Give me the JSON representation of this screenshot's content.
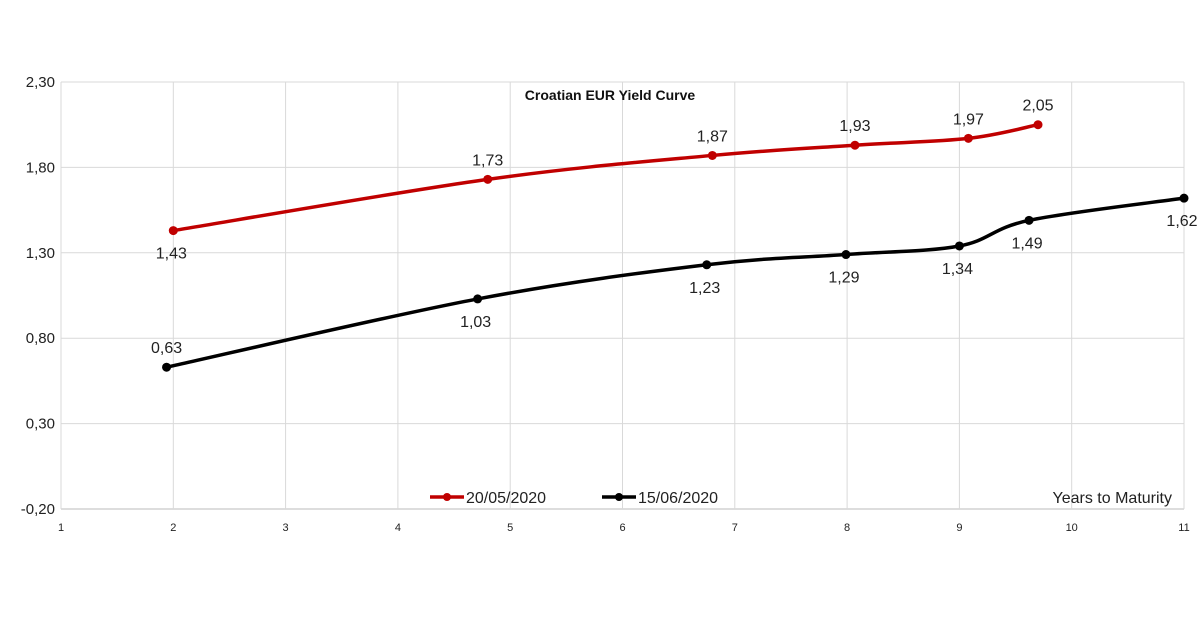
{
  "chart_data": {
    "type": "line",
    "title": "Croatian EUR Yield Curve",
    "xlabel": "Years to Maturity",
    "ylabel": "",
    "xlim": [
      1,
      11
    ],
    "ylim": [
      -0.2,
      2.3
    ],
    "x_ticks": [
      "1",
      "2",
      "3",
      "4",
      "5",
      "6",
      "7",
      "8",
      "9",
      "10",
      "11"
    ],
    "y_ticks": [
      "-0,20",
      "0,30",
      "0,80",
      "1,30",
      "1,80",
      "2,30"
    ],
    "y_tick_values": [
      -0.2,
      0.3,
      0.8,
      1.3,
      1.8,
      2.3
    ],
    "grid": true,
    "legend_position": "bottom-center",
    "series": [
      {
        "name": "20/05/2020",
        "color": "#c00000",
        "x": [
          2.0,
          4.8,
          6.8,
          8.07,
          9.08,
          9.7
        ],
        "y": [
          1.43,
          1.73,
          1.87,
          1.93,
          1.97,
          2.05
        ],
        "labels": [
          "1,43",
          "1,73",
          "1,87",
          "1,93",
          "1,97",
          "2,05"
        ],
        "label_pos": [
          "below",
          "above",
          "above",
          "above",
          "above",
          "above"
        ]
      },
      {
        "name": "15/06/2020",
        "color": "#000000",
        "x": [
          1.94,
          4.71,
          6.75,
          7.99,
          9.0,
          9.62,
          11.0
        ],
        "y": [
          0.63,
          1.03,
          1.23,
          1.29,
          1.34,
          1.49,
          1.62
        ],
        "labels": [
          "0,63",
          "1,03",
          "1,23",
          "1,29",
          "1,34",
          "1,49",
          "1,62"
        ],
        "label_pos": [
          "above",
          "below",
          "below",
          "below",
          "below",
          "below",
          "below"
        ]
      }
    ]
  }
}
